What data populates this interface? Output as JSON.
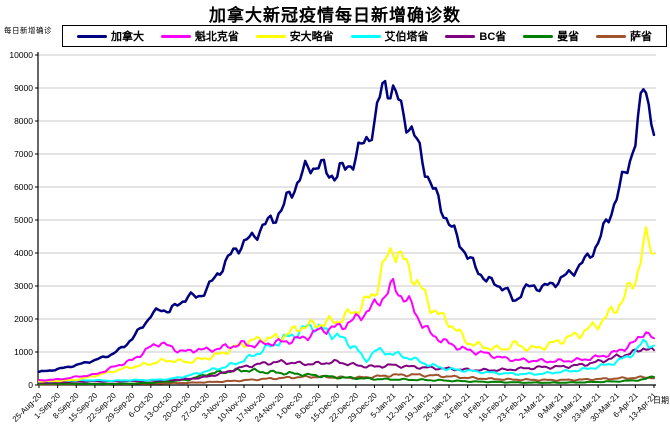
{
  "title": "加拿大新冠疫情每日新增确诊数",
  "y_axis": {
    "title": "每日新增确诊",
    "tick_labels": [
      "0",
      "1000",
      "2000",
      "3000",
      "4000",
      "5000",
      "6000",
      "7000",
      "8000",
      "9000",
      "10000"
    ]
  },
  "x_axis": {
    "title": "日期",
    "tick_labels": [
      "25-Aug-20",
      "1-Sep-20",
      "8-Sep-20",
      "15-Sep-20",
      "22-Sep-20",
      "29-Sep-20",
      "6-Oct-20",
      "13-Oct-20",
      "20-Oct-20",
      "27-Oct-20",
      "3-Nov-20",
      "10-Nov-20",
      "17-Nov-20",
      "24-Nov-20",
      "1-Dec-20",
      "8-Dec-20",
      "15-Dec-20",
      "22-Dec-20",
      "29-Dec-20",
      "5-Jan-21",
      "12-Jan-21",
      "19-Jan-21",
      "26-Jan-21",
      "2-Feb-21",
      "9-Feb-21",
      "16-Feb-21",
      "23-Feb-21",
      "2-Mar-21",
      "9-Mar-21",
      "16-Mar-21",
      "23-Mar-21",
      "30-Mar-21",
      "6-Apr-21",
      "13-Apr-21"
    ]
  },
  "chart_data": {
    "type": "line",
    "title": "加拿大新冠疫情每日新增确诊数",
    "xlabel": "日期",
    "ylabel": "每日新增确诊",
    "ylim": [
      0,
      10000
    ],
    "y_tick_step": 1000,
    "grid": true,
    "legend_position": "top",
    "x_tick_labels": [
      "25-Aug-20",
      "1-Sep-20",
      "8-Sep-20",
      "15-Sep-20",
      "22-Sep-20",
      "29-Sep-20",
      "6-Oct-20",
      "13-Oct-20",
      "20-Oct-20",
      "27-Oct-20",
      "3-Nov-20",
      "10-Nov-20",
      "17-Nov-20",
      "24-Nov-20",
      "1-Dec-20",
      "8-Dec-20",
      "15-Dec-20",
      "22-Dec-20",
      "29-Dec-20",
      "5-Jan-21",
      "12-Jan-21",
      "19-Jan-21",
      "26-Jan-21",
      "2-Feb-21",
      "9-Feb-21",
      "16-Feb-21",
      "23-Feb-21",
      "2-Mar-21",
      "9-Mar-21",
      "16-Mar-21",
      "23-Mar-21",
      "30-Mar-21",
      "6-Apr-21",
      "13-Apr-21"
    ],
    "sample_interval_days": 3.5,
    "series": [
      {
        "name": "加拿大",
        "color": "#000080",
        "line_width": 2.5,
        "wiggle": 0.05,
        "values": [
          400,
          430,
          480,
          540,
          600,
          680,
          750,
          850,
          950,
          1150,
          1400,
          1750,
          2100,
          2300,
          2250,
          2450,
          2700,
          2650,
          2900,
          3300,
          3700,
          4100,
          4300,
          4500,
          4800,
          5000,
          5300,
          5800,
          6300,
          6600,
          6700,
          6400,
          6400,
          6600,
          6900,
          7400,
          7900,
          9200,
          8900,
          8300,
          7700,
          7000,
          6100,
          5500,
          4900,
          4400,
          3900,
          3500,
          3200,
          3050,
          2950,
          2500,
          2900,
          3000,
          2950,
          3050,
          3200,
          3400,
          3600,
          3900,
          4300,
          5000,
          5700,
          6500,
          7400,
          9250,
          7700
        ]
      },
      {
        "name": "魁北克省",
        "color": "#FF00FF",
        "line_width": 2,
        "wiggle": 0.09,
        "values": [
          140,
          155,
          170,
          200,
          250,
          280,
          320,
          420,
          550,
          650,
          750,
          950,
          1150,
          1300,
          1150,
          1050,
          1000,
          1100,
          1050,
          1100,
          1150,
          1200,
          1250,
          1200,
          1250,
          1280,
          1300,
          1350,
          1400,
          1500,
          1650,
          1700,
          1750,
          1850,
          2000,
          2200,
          2400,
          2700,
          3000,
          2700,
          2400,
          1900,
          1550,
          1400,
          1250,
          1150,
          1050,
          1000,
          950,
          870,
          800,
          770,
          750,
          740,
          730,
          720,
          730,
          740,
          760,
          800,
          850,
          920,
          1000,
          1150,
          1300,
          1650,
          1350
        ]
      },
      {
        "name": "安大略省",
        "color": "#FFFF00",
        "line_width": 2,
        "wiggle": 0.1,
        "values": [
          110,
          115,
          120,
          140,
          160,
          220,
          280,
          350,
          420,
          490,
          550,
          600,
          650,
          720,
          750,
          720,
          700,
          760,
          820,
          900,
          1000,
          1150,
          1250,
          1350,
          1400,
          1420,
          1450,
          1600,
          1750,
          1800,
          1850,
          1900,
          1950,
          2100,
          2250,
          2500,
          2800,
          3600,
          4200,
          3800,
          3400,
          2900,
          2400,
          2100,
          1900,
          1600,
          1300,
          1200,
          1150,
          1100,
          1100,
          1250,
          1150,
          1100,
          1150,
          1250,
          1350,
          1450,
          1550,
          1700,
          1850,
          2100,
          2350,
          2750,
          3200,
          4400,
          4050
        ]
      },
      {
        "name": "艾伯塔省",
        "color": "#00FFFF",
        "line_width": 2,
        "wiggle": 0.11,
        "values": [
          100,
          115,
          130,
          135,
          140,
          142,
          145,
          138,
          130,
          140,
          150,
          150,
          150,
          165,
          180,
          230,
          280,
          350,
          420,
          490,
          550,
          650,
          750,
          900,
          1050,
          1200,
          1350,
          1500,
          1600,
          1800,
          1750,
          1600,
          1500,
          1300,
          1150,
          700,
          1050,
          1000,
          950,
          880,
          800,
          700,
          600,
          540,
          480,
          455,
          430,
          405,
          380,
          365,
          350,
          340,
          330,
          335,
          340,
          370,
          400,
          425,
          450,
          500,
          550,
          625,
          700,
          850,
          1000,
          1350,
          1150
        ]
      },
      {
        "name": "BC省",
        "color": "#800080",
        "line_width": 2,
        "wiggle": 0.1,
        "values": [
          70,
          78,
          85,
          92,
          100,
          105,
          110,
          110,
          110,
          115,
          120,
          125,
          130,
          140,
          150,
          165,
          180,
          210,
          250,
          310,
          380,
          470,
          550,
          600,
          650,
          680,
          700,
          680,
          650,
          640,
          650,
          680,
          700,
          650,
          600,
          570,
          550,
          580,
          600,
          570,
          550,
          535,
          520,
          505,
          490,
          475,
          460,
          455,
          450,
          455,
          460,
          480,
          500,
          520,
          540,
          545,
          550,
          575,
          600,
          650,
          700,
          780,
          850,
          930,
          1000,
          1150,
          1000
        ]
      },
      {
        "name": "曼省",
        "color": "#008000",
        "line_width": 2,
        "wiggle": 0.16,
        "values": [
          40,
          42,
          45,
          40,
          35,
          32,
          30,
          32,
          35,
          38,
          40,
          55,
          70,
          90,
          110,
          135,
          160,
          240,
          330,
          370,
          400,
          430,
          450,
          430,
          400,
          385,
          370,
          350,
          330,
          305,
          280,
          255,
          230,
          220,
          210,
          195,
          180,
          175,
          170,
          165,
          160,
          155,
          150,
          140,
          130,
          120,
          110,
          100,
          95,
          90,
          85,
          80,
          75,
          72,
          70,
          70,
          70,
          75,
          80,
          88,
          95,
          100,
          110,
          125,
          140,
          170,
          280
        ]
      },
      {
        "name": "萨省",
        "color": "#A0522D",
        "line_width": 2,
        "wiggle": 0.16,
        "values": [
          15,
          18,
          20,
          22,
          25,
          28,
          30,
          30,
          30,
          32,
          35,
          40,
          45,
          50,
          55,
          60,
          65,
          75,
          85,
          95,
          110,
          125,
          140,
          160,
          180,
          195,
          210,
          225,
          240,
          245,
          250,
          240,
          230,
          225,
          220,
          235,
          250,
          275,
          300,
          305,
          310,
          300,
          290,
          275,
          260,
          240,
          220,
          205,
          190,
          180,
          170,
          165,
          160,
          155,
          150,
          150,
          150,
          155,
          160,
          170,
          180,
          190,
          200,
          210,
          220,
          235,
          220
        ]
      }
    ]
  }
}
